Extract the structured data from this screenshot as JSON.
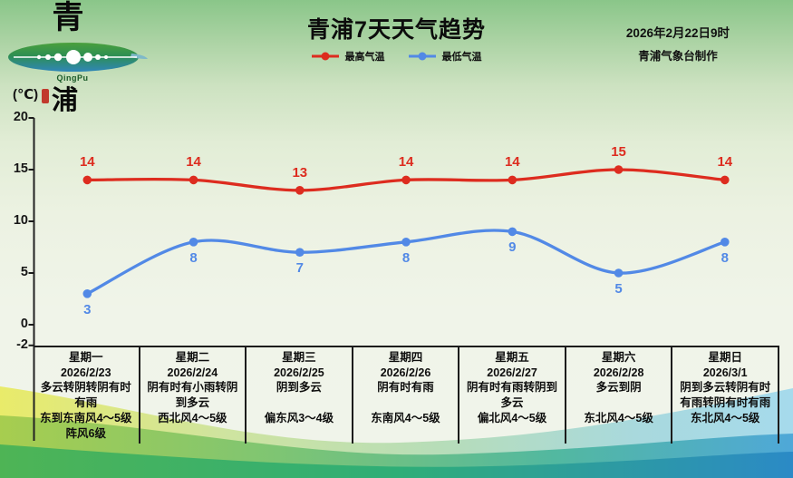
{
  "logo": {
    "top_char": "青",
    "bottom_char": "浦",
    "romanized": "QingPu"
  },
  "header": {
    "title": "青浦7天天气趋势",
    "datetime": "2026年2月22日9时",
    "credit": "青浦气象台制作"
  },
  "axis": {
    "unit": "(℃)"
  },
  "colors": {
    "high_temp": "#dd2c1f",
    "low_temp": "#5289e6",
    "axis": "#1c1c1c"
  },
  "chart_data": {
    "type": "line",
    "title": "青浦7天天气趋势",
    "categories": [
      "星期一",
      "星期二",
      "星期三",
      "星期四",
      "星期五",
      "星期六",
      "星期日"
    ],
    "series": [
      {
        "name": "最高气温",
        "color": "#dd2c1f",
        "values": [
          14,
          14,
          13,
          14,
          14,
          15,
          14
        ],
        "label_position": "above"
      },
      {
        "name": "最低气温",
        "color": "#5289e6",
        "values": [
          3,
          8,
          7,
          8,
          9,
          5,
          8
        ],
        "label_position": "below"
      }
    ],
    "ylabel": "(℃)",
    "ylim": [
      -2,
      20
    ],
    "yticks": [
      20,
      15,
      10,
      5,
      0,
      -2
    ],
    "grid": false,
    "legend_position": "top-center"
  },
  "table": {
    "days": [
      {
        "day": "星期一",
        "date": "2026/2/23",
        "weather": "多云转阴转阴有时有雨",
        "wind": "东到东南风4～5级阵风6级"
      },
      {
        "day": "星期二",
        "date": "2026/2/24",
        "weather": "阴有时有小雨转阴到多云",
        "wind": "西北风4～5级"
      },
      {
        "day": "星期三",
        "date": "2026/2/25",
        "weather": "阴到多云",
        "wind": "偏东风3～4级"
      },
      {
        "day": "星期四",
        "date": "2026/2/26",
        "weather": "阴有时有雨",
        "wind": "东南风4～5级"
      },
      {
        "day": "星期五",
        "date": "2026/2/27",
        "weather": "阴有时有雨转阴到多云",
        "wind": "偏北风4～5级"
      },
      {
        "day": "星期六",
        "date": "2026/2/28",
        "weather": "多云到阴",
        "wind": "东北风4～5级"
      },
      {
        "day": "星期日",
        "date": "2026/3/1",
        "weather": "阴到多云转阴有时有雨转阴有时有雨",
        "wind": "东北风4～5级"
      }
    ]
  }
}
